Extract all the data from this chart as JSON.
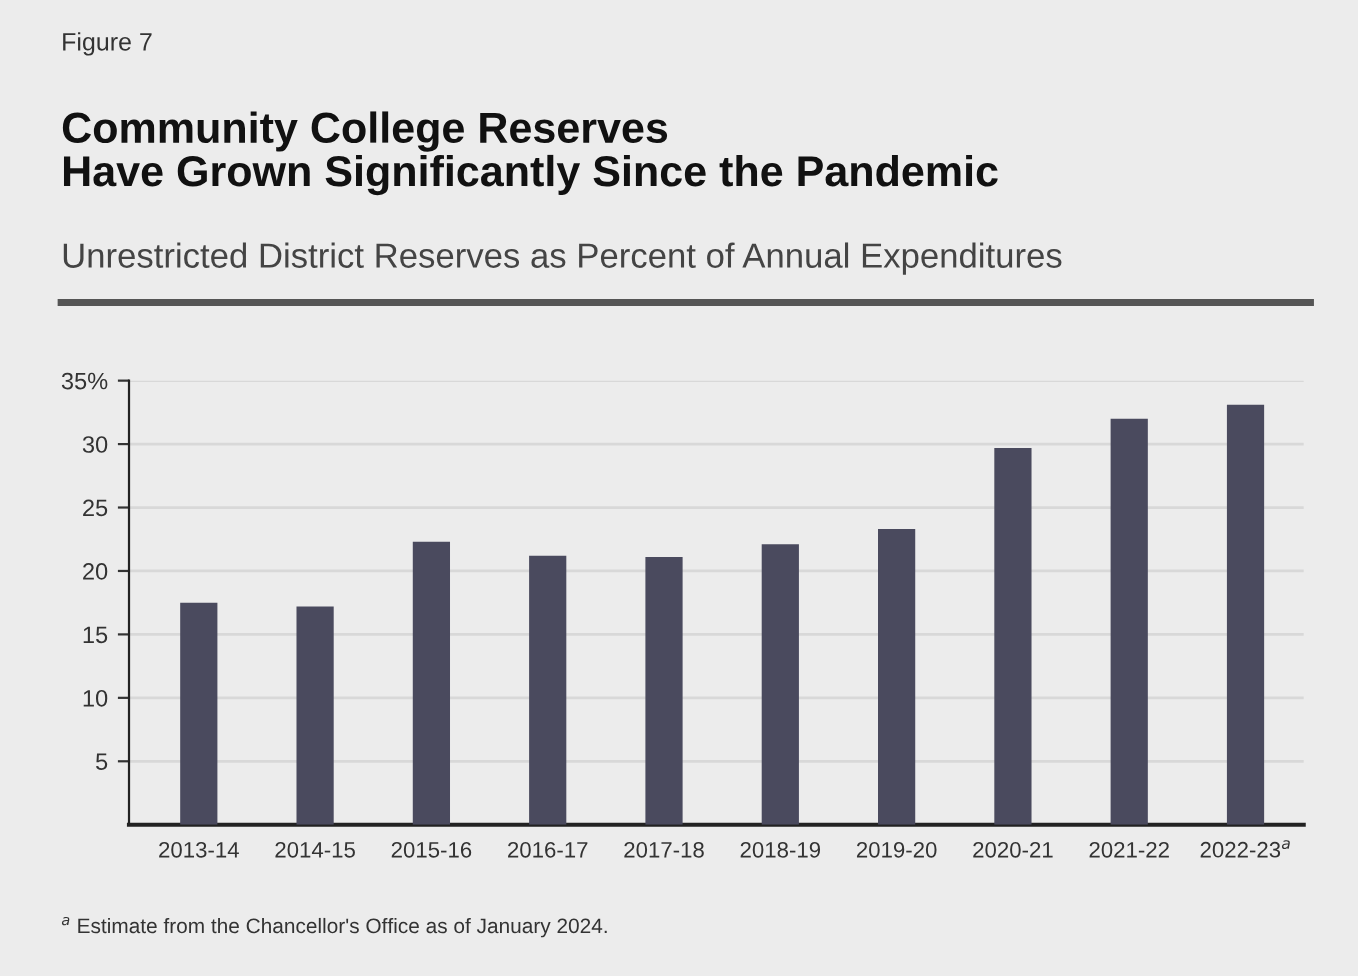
{
  "chart_data": {
    "type": "bar",
    "title": "Community College Reserves\nHave Grown Significantly Since the Pandemic",
    "subtitle": "Unrestricted District Reserves as Percent of Annual Expenditures",
    "annotations": [
      "Figure 7",
      "$^{a}$ Estimate from the Chancellor's Office as of January 2024."
    ],
    "categories": [
      "2013-14",
      "2014-15",
      "2015-16",
      "2016-17",
      "2017-18",
      "2018-19",
      "2019-20",
      "2020-21",
      "2021-22",
      "2022-23$^{a}$"
    ],
    "values": [
      17.5,
      17.2,
      22.3,
      21.2,
      21.1,
      22.1,
      23.3,
      29.7,
      32.0,
      33.1
    ],
    "color": "#4a4a5e",
    "ylim": [
      0,
      35
    ],
    "yticks": [
      {
        "value": 5,
        "label": "5"
      },
      {
        "value": 10,
        "label": "10"
      },
      {
        "value": 15,
        "label": "15"
      },
      {
        "value": 20,
        "label": "20"
      },
      {
        "value": 25,
        "label": "25"
      },
      {
        "value": 30,
        "label": "30"
      },
      {
        "value": 35,
        "label": "35%"
      }
    ],
    "grid": "y",
    "legend": false
  }
}
